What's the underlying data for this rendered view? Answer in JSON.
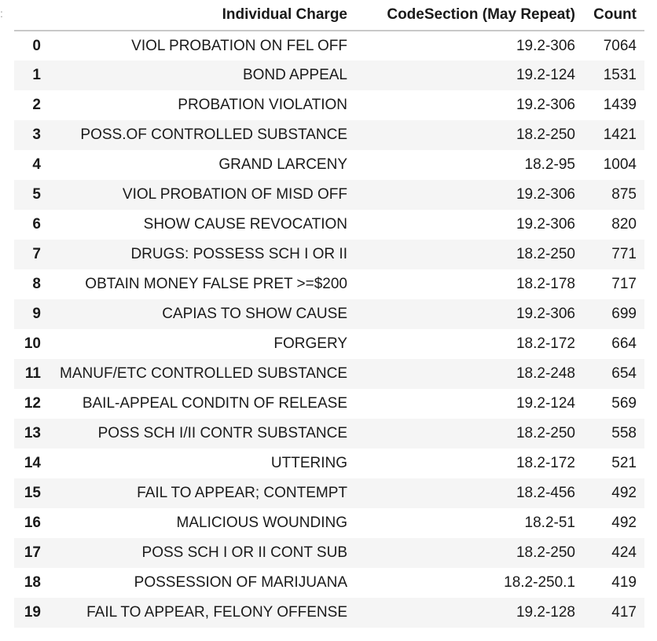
{
  "table": {
    "columns": [
      "",
      "Individual Charge",
      "CodeSection (May Repeat)",
      "Count"
    ],
    "rows": [
      {
        "index": "0",
        "charge": "VIOL PROBATION ON FEL OFF",
        "code": "19.2-306",
        "count": "7064"
      },
      {
        "index": "1",
        "charge": "BOND APPEAL",
        "code": "19.2-124",
        "count": "1531"
      },
      {
        "index": "2",
        "charge": "PROBATION VIOLATION",
        "code": "19.2-306",
        "count": "1439"
      },
      {
        "index": "3",
        "charge": "POSS.OF CONTROLLED SUBSTANCE",
        "code": "18.2-250",
        "count": "1421"
      },
      {
        "index": "4",
        "charge": "GRAND LARCENY",
        "code": "18.2-95",
        "count": "1004"
      },
      {
        "index": "5",
        "charge": "VIOL PROBATION OF MISD OFF",
        "code": "19.2-306",
        "count": "875"
      },
      {
        "index": "6",
        "charge": "SHOW CAUSE REVOCATION",
        "code": "19.2-306",
        "count": "820"
      },
      {
        "index": "7",
        "charge": "DRUGS: POSSESS SCH I OR II",
        "code": "18.2-250",
        "count": "771"
      },
      {
        "index": "8",
        "charge": "OBTAIN MONEY FALSE PRET >=$200",
        "code": "18.2-178",
        "count": "717"
      },
      {
        "index": "9",
        "charge": "CAPIAS TO SHOW CAUSE",
        "code": "19.2-306",
        "count": "699"
      },
      {
        "index": "10",
        "charge": "FORGERY",
        "code": "18.2-172",
        "count": "664"
      },
      {
        "index": "11",
        "charge": "MANUF/ETC CONTROLLED SUBSTANCE",
        "code": "18.2-248",
        "count": "654"
      },
      {
        "index": "12",
        "charge": "BAIL-APPEAL CONDITN OF RELEASE",
        "code": "19.2-124",
        "count": "569"
      },
      {
        "index": "13",
        "charge": "POSS SCH I/II CONTR SUBSTANCE",
        "code": "18.2-250",
        "count": "558"
      },
      {
        "index": "14",
        "charge": "UTTERING",
        "code": "18.2-172",
        "count": "521"
      },
      {
        "index": "15",
        "charge": "FAIL TO APPEAR; CONTEMPT",
        "code": "18.2-456",
        "count": "492"
      },
      {
        "index": "16",
        "charge": "MALICIOUS WOUNDING",
        "code": "18.2-51",
        "count": "492"
      },
      {
        "index": "17",
        "charge": "POSS SCH I OR II CONT SUB",
        "code": "18.2-250",
        "count": "424"
      },
      {
        "index": "18",
        "charge": "POSSESSION OF MARIJUANA",
        "code": "18.2-250.1",
        "count": "419"
      },
      {
        "index": "19",
        "charge": "FAIL TO APPEAR, FELONY OFFENSE",
        "code": "19.2-128",
        "count": "417"
      }
    ]
  },
  "colors": {
    "header_rule": "#c8c8c8",
    "stripe": "#f5f5f5",
    "text": "#1a1a1a"
  }
}
